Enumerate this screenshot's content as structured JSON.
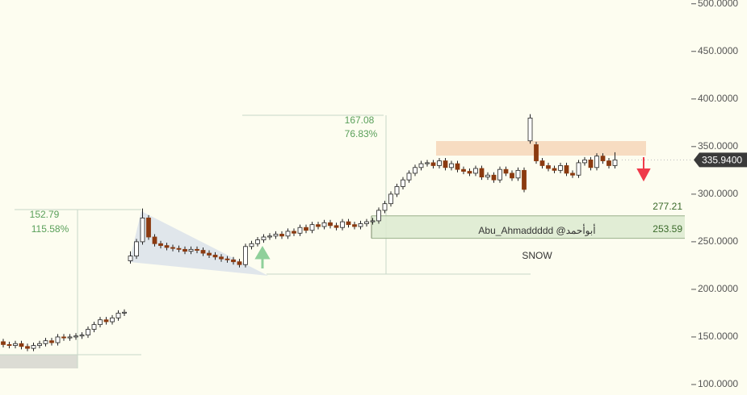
{
  "chart_data": {
    "type": "candlestick",
    "open": [
      145,
      142,
      141,
      143,
      140,
      138,
      141,
      143,
      146,
      144,
      150,
      149,
      150,
      151,
      152,
      158,
      163,
      168,
      166,
      170,
      175,
      230,
      235,
      250,
      275,
      255,
      248,
      246,
      244,
      243,
      242,
      240,
      242,
      241,
      238,
      236,
      234,
      232,
      231,
      229,
      226,
      245,
      248,
      252,
      255,
      256,
      258,
      256,
      261,
      259,
      265,
      262,
      268,
      266,
      270,
      267,
      265,
      271,
      268,
      266,
      269,
      271,
      272,
      283,
      290,
      300,
      308,
      315,
      322,
      328,
      332,
      333,
      330,
      335,
      328,
      332,
      326,
      324,
      322,
      327,
      318,
      320,
      315,
      326,
      322,
      317,
      325,
      356,
      352,
      335,
      330,
      327,
      325,
      330,
      322,
      320,
      333,
      336,
      328,
      340,
      335,
      330
    ],
    "high": [
      148,
      145,
      146,
      146,
      143,
      144,
      146,
      149,
      149,
      153,
      153,
      153,
      154,
      155,
      161,
      166,
      171,
      171,
      173,
      178,
      179,
      240,
      253,
      285,
      278,
      258,
      251,
      249,
      247,
      246,
      245,
      245,
      245,
      244,
      241,
      239,
      237,
      235,
      234,
      232,
      248,
      251,
      255,
      258,
      259,
      261,
      261,
      264,
      264,
      268,
      268,
      271,
      271,
      273,
      273,
      270,
      274,
      274,
      271,
      272,
      274,
      275,
      286,
      293,
      303,
      311,
      318,
      325,
      331,
      335,
      336,
      336,
      338,
      338,
      335,
      335,
      329,
      327,
      330,
      330,
      323,
      323,
      329,
      329,
      325,
      328,
      328,
      384,
      355,
      338,
      333,
      330,
      333,
      333,
      325,
      336,
      339,
      339,
      343,
      343,
      338,
      344
    ],
    "low": [
      139,
      138,
      138,
      137,
      135,
      135,
      138,
      140,
      141,
      141,
      146,
      146,
      147,
      148,
      149,
      155,
      160,
      163,
      163,
      167,
      172,
      227,
      232,
      247,
      252,
      245,
      243,
      241,
      240,
      239,
      237,
      237,
      238,
      235,
      233,
      231,
      229,
      228,
      226,
      223,
      223,
      242,
      245,
      249,
      252,
      253,
      253,
      253,
      256,
      256,
      259,
      259,
      263,
      263,
      264,
      262,
      262,
      265,
      263,
      263,
      266,
      268,
      269,
      280,
      287,
      297,
      305,
      312,
      319,
      325,
      329,
      327,
      327,
      325,
      325,
      323,
      321,
      319,
      319,
      315,
      315,
      312,
      312,
      319,
      314,
      314,
      302,
      353,
      332,
      327,
      324,
      322,
      322,
      319,
      317,
      317,
      330,
      325,
      325,
      332,
      327,
      327
    ],
    "close": [
      142,
      141,
      143,
      140,
      138,
      141,
      143,
      146,
      144,
      150,
      149,
      150,
      151,
      152,
      158,
      163,
      168,
      166,
      170,
      175,
      176,
      235,
      250,
      275,
      255,
      248,
      246,
      244,
      243,
      242,
      240,
      242,
      241,
      238,
      236,
      234,
      232,
      231,
      229,
      226,
      245,
      248,
      252,
      255,
      256,
      258,
      256,
      261,
      259,
      265,
      262,
      268,
      266,
      270,
      267,
      265,
      271,
      268,
      266,
      269,
      271,
      272,
      283,
      290,
      300,
      308,
      315,
      322,
      328,
      332,
      333,
      330,
      335,
      328,
      332,
      326,
      324,
      322,
      327,
      318,
      320,
      315,
      326,
      322,
      317,
      325,
      305,
      380,
      335,
      330,
      327,
      325,
      330,
      322,
      320,
      333,
      336,
      328,
      340,
      335,
      330,
      336
    ],
    "up_color": "#ffffff",
    "down_color": "#8b3a10",
    "ylim": [
      89,
      504
    ],
    "yticks": [
      {
        "value": 500,
        "label": "500.0000"
      },
      {
        "value": 450,
        "label": "450.0000"
      },
      {
        "value": 400,
        "label": "400.0000"
      },
      {
        "value": 350,
        "label": "350.0000"
      },
      {
        "value": 300,
        "label": "300.0000"
      },
      {
        "value": 250,
        "label": "250.0000"
      },
      {
        "value": 200,
        "label": "200.0000"
      },
      {
        "value": 150,
        "label": "150.0000"
      },
      {
        "value": 100,
        "label": "100.0000"
      }
    ],
    "last_price": {
      "value": 335.94,
      "label": "335.9400"
    },
    "levels": [
      277.21,
      253.59
    ],
    "measures": [
      {
        "change": "152.79",
        "percent": "115.58%"
      },
      {
        "change": "167.08",
        "percent": "76.83%"
      }
    ],
    "watermark": "Abu_Ahmaddddd @أبوأحمد",
    "symbol": "SNOW"
  }
}
